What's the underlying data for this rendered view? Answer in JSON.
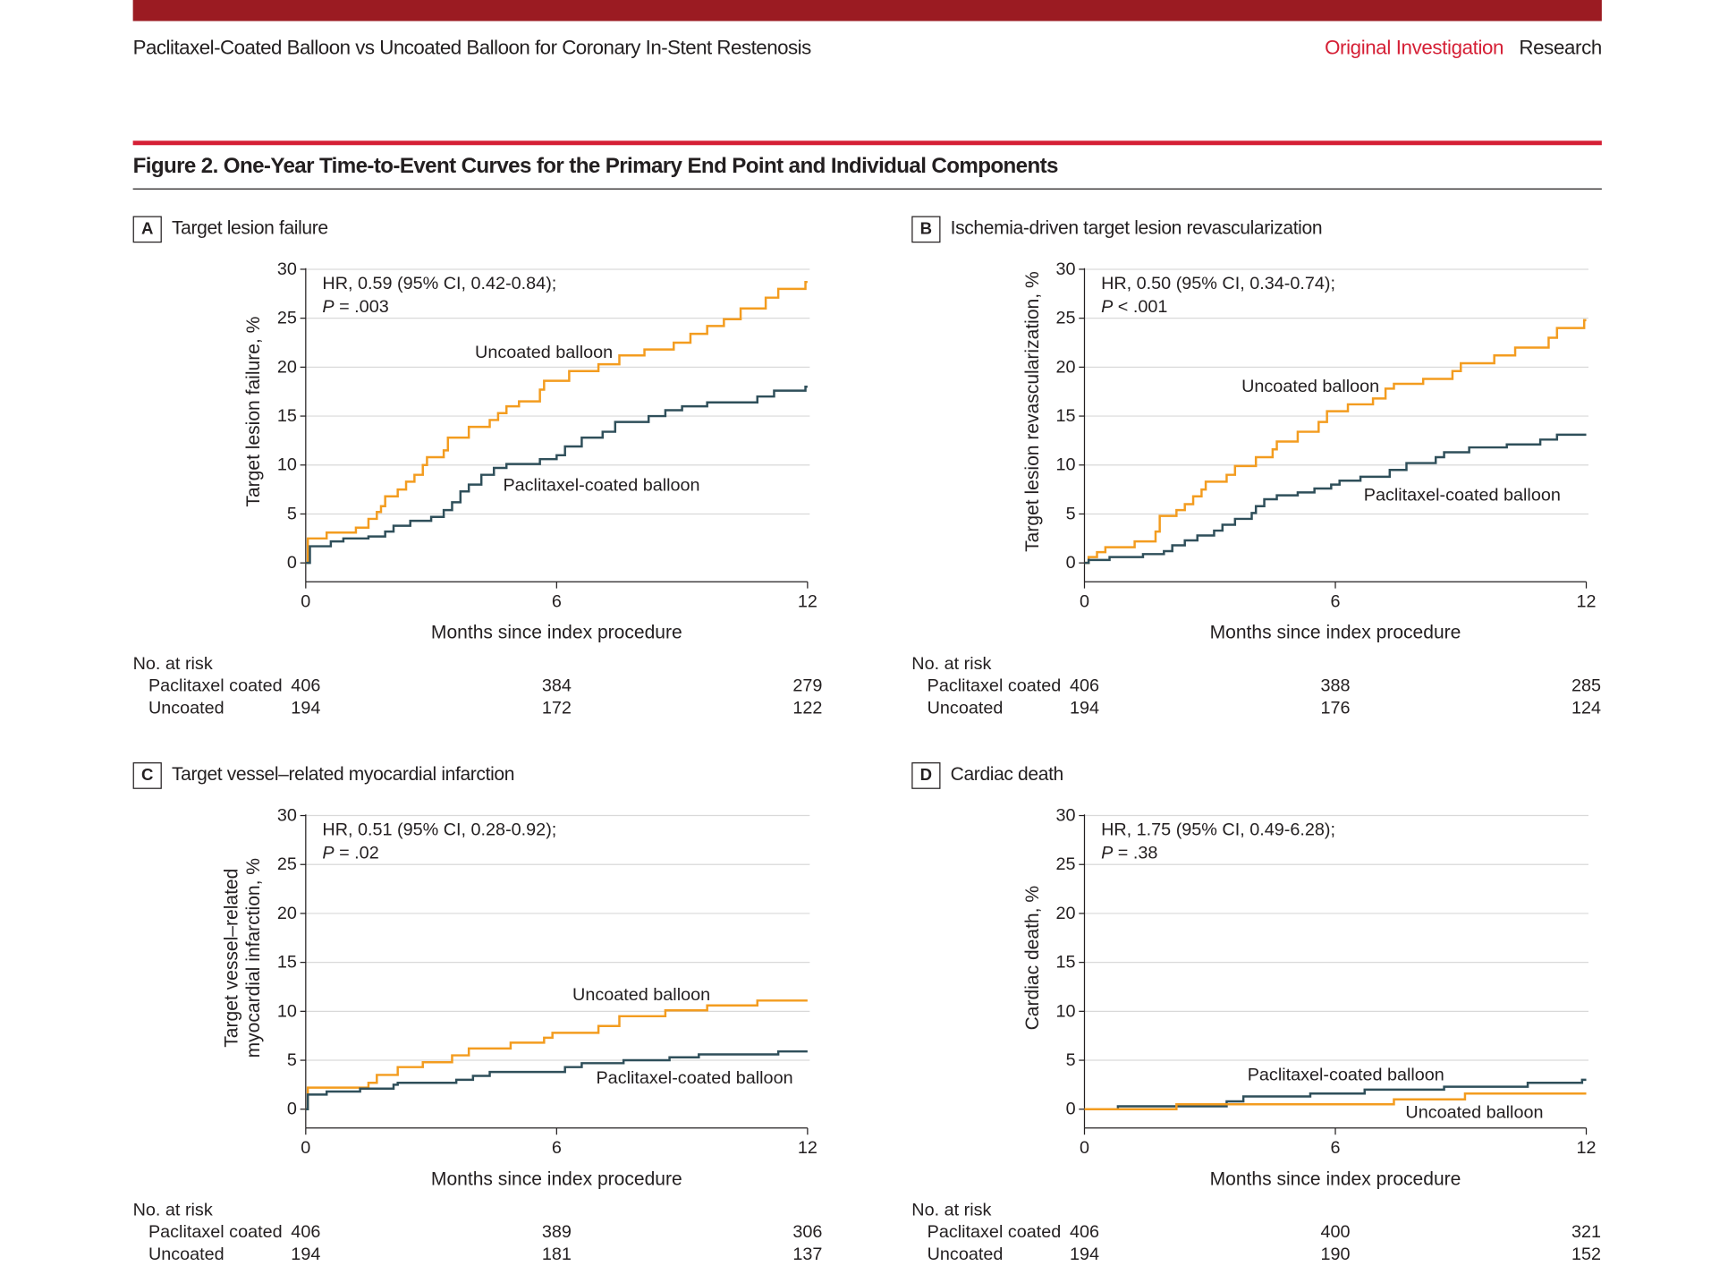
{
  "header": {
    "running_title": "Paclitaxel-Coated Balloon vs Uncoated Balloon for Coronary In-Stent Restenosis",
    "section": "Original Investigation",
    "category": "Research"
  },
  "figure_title": "Figure 2. One-Year Time-to-Event Curves for the Primary End Point and Individual Components",
  "colors": {
    "top_bar": "#9b1b22",
    "accent_red": "#d51f35",
    "uncoated": "#f39c1f",
    "paclitaxel": "#2f4f5a",
    "grid": "#d9d9d9"
  },
  "chart_data": [
    {
      "type": "line",
      "step": true,
      "letter": "A",
      "title": "Target lesion failure",
      "ylabel": [
        "Target lesion failure, %"
      ],
      "xlabel": "Months since index procedure",
      "xlim": [
        0,
        12
      ],
      "ylim": [
        0,
        30
      ],
      "xticks": [
        0,
        6,
        12
      ],
      "yticks": [
        0,
        5,
        10,
        15,
        20,
        25,
        30
      ],
      "grid": true,
      "hr_text": "HR, 0.59 (95% CI, 0.42-0.84);",
      "p_label": "P",
      "p_value": " = .003",
      "series": [
        {
          "name": "Uncoated balloon",
          "color": "#f39c1f",
          "points": [
            [
              0,
              0
            ],
            [
              0.05,
              2.5
            ],
            [
              0.5,
              3.1
            ],
            [
              1.2,
              3.6
            ],
            [
              1.5,
              4.5
            ],
            [
              1.7,
              5.2
            ],
            [
              1.8,
              5.8
            ],
            [
              1.9,
              6.8
            ],
            [
              2.2,
              7.5
            ],
            [
              2.4,
              8.3
            ],
            [
              2.6,
              9
            ],
            [
              2.8,
              10
            ],
            [
              2.9,
              10.8
            ],
            [
              3.3,
              11.5
            ],
            [
              3.4,
              12.8
            ],
            [
              3.9,
              13.9
            ],
            [
              4.4,
              14.6
            ],
            [
              4.6,
              15.3
            ],
            [
              4.8,
              16
            ],
            [
              5.1,
              16.5
            ],
            [
              5.6,
              17.7
            ],
            [
              5.7,
              18.6
            ],
            [
              6.3,
              19.6
            ],
            [
              7.0,
              20.3
            ],
            [
              7.5,
              21.2
            ],
            [
              8.1,
              21.8
            ],
            [
              8.8,
              22.5
            ],
            [
              9.2,
              23.4
            ],
            [
              9.6,
              24.2
            ],
            [
              10.0,
              24.9
            ],
            [
              10.4,
              26
            ],
            [
              11.0,
              27.1
            ],
            [
              11.3,
              28
            ],
            [
              11.95,
              28.7
            ]
          ]
        },
        {
          "name": "Paclitaxel-coated balloon",
          "color": "#2f4f5a",
          "points": [
            [
              0,
              0
            ],
            [
              0.1,
              1.7
            ],
            [
              0.6,
              2.2
            ],
            [
              0.9,
              2.5
            ],
            [
              1.5,
              2.7
            ],
            [
              1.9,
              3.2
            ],
            [
              2.1,
              3.8
            ],
            [
              2.5,
              4.3
            ],
            [
              3.0,
              4.7
            ],
            [
              3.3,
              5.4
            ],
            [
              3.5,
              6.2
            ],
            [
              3.7,
              7.3
            ],
            [
              3.9,
              8
            ],
            [
              4.2,
              9
            ],
            [
              4.5,
              9.7
            ],
            [
              4.8,
              10.1
            ],
            [
              5.6,
              10.6
            ],
            [
              6.0,
              11
            ],
            [
              6.2,
              11.9
            ],
            [
              6.6,
              12.8
            ],
            [
              7.1,
              13.4
            ],
            [
              7.4,
              14.4
            ],
            [
              8.2,
              15
            ],
            [
              8.6,
              15.6
            ],
            [
              9.0,
              16
            ],
            [
              9.6,
              16.4
            ],
            [
              10.8,
              17
            ],
            [
              11.2,
              17.6
            ],
            [
              11.95,
              18
            ]
          ]
        }
      ],
      "risk": {
        "header": "No. at risk",
        "rows": [
          {
            "label": "Paclitaxel coated",
            "values": [
              "406",
              "384",
              "279"
            ]
          },
          {
            "label": "Uncoated",
            "values": [
              "194",
              "172",
              "122"
            ]
          }
        ]
      }
    },
    {
      "type": "line",
      "step": true,
      "letter": "B",
      "title": "Ischemia-driven target lesion revascularization",
      "ylabel": [
        "Target lesion revascularization, %"
      ],
      "xlabel": "Months since index procedure",
      "xlim": [
        0,
        12
      ],
      "ylim": [
        0,
        30
      ],
      "xticks": [
        0,
        6,
        12
      ],
      "yticks": [
        0,
        5,
        10,
        15,
        20,
        25,
        30
      ],
      "grid": true,
      "hr_text": "HR, 0.50 (95% CI, 0.34-0.74);",
      "p_label": "P",
      "p_value": " < .001",
      "series": [
        {
          "name": "Uncoated balloon",
          "color": "#f39c1f",
          "points": [
            [
              0,
              0
            ],
            [
              0.1,
              0.6
            ],
            [
              0.3,
              1.1
            ],
            [
              0.5,
              1.6
            ],
            [
              1.2,
              2.2
            ],
            [
              1.7,
              3.2
            ],
            [
              1.8,
              4.8
            ],
            [
              2.2,
              5.4
            ],
            [
              2.4,
              6
            ],
            [
              2.6,
              6.8
            ],
            [
              2.8,
              7.5
            ],
            [
              2.9,
              8.3
            ],
            [
              3.4,
              9
            ],
            [
              3.6,
              9.9
            ],
            [
              4.1,
              10.8
            ],
            [
              4.5,
              11.6
            ],
            [
              4.6,
              12.4
            ],
            [
              5.1,
              13.4
            ],
            [
              5.6,
              14.4
            ],
            [
              5.8,
              15.5
            ],
            [
              6.3,
              16.2
            ],
            [
              6.9,
              16.8
            ],
            [
              7.2,
              17.8
            ],
            [
              7.4,
              18.3
            ],
            [
              8.1,
              18.8
            ],
            [
              8.8,
              19.6
            ],
            [
              9.0,
              20.4
            ],
            [
              9.8,
              21.2
            ],
            [
              10.3,
              22
            ],
            [
              11.1,
              23
            ],
            [
              11.3,
              24
            ],
            [
              11.95,
              24.8
            ]
          ]
        },
        {
          "name": "Paclitaxel-coated balloon",
          "color": "#2f4f5a",
          "points": [
            [
              0,
              0
            ],
            [
              0.1,
              0.3
            ],
            [
              0.6,
              0.6
            ],
            [
              1.4,
              0.9
            ],
            [
              1.9,
              1.2
            ],
            [
              2.1,
              1.8
            ],
            [
              2.4,
              2.3
            ],
            [
              2.7,
              2.8
            ],
            [
              3.1,
              3.3
            ],
            [
              3.3,
              3.9
            ],
            [
              3.6,
              4.5
            ],
            [
              4.0,
              5.1
            ],
            [
              4.1,
              5.8
            ],
            [
              4.3,
              6.5
            ],
            [
              4.6,
              6.9
            ],
            [
              5.1,
              7.2
            ],
            [
              5.5,
              7.6
            ],
            [
              5.9,
              8
            ],
            [
              6.1,
              8.4
            ],
            [
              6.6,
              8.8
            ],
            [
              7.3,
              9.5
            ],
            [
              7.7,
              10.2
            ],
            [
              8.4,
              10.8
            ],
            [
              8.6,
              11.3
            ],
            [
              9.2,
              11.8
            ],
            [
              10.1,
              12.1
            ],
            [
              10.9,
              12.6
            ],
            [
              11.3,
              13.1
            ],
            [
              12,
              13.1
            ]
          ]
        }
      ],
      "risk": {
        "header": "No. at risk",
        "rows": [
          {
            "label": "Paclitaxel coated",
            "values": [
              "406",
              "388",
              "285"
            ]
          },
          {
            "label": "Uncoated",
            "values": [
              "194",
              "176",
              "124"
            ]
          }
        ]
      }
    },
    {
      "type": "line",
      "step": true,
      "letter": "C",
      "title": "Target vessel–related myocardial infarction",
      "ylabel": [
        "Target vessel–related",
        "myocardial infarction, %"
      ],
      "xlabel": "Months since index procedure",
      "xlim": [
        0,
        12
      ],
      "ylim": [
        0,
        30
      ],
      "xticks": [
        0,
        6,
        12
      ],
      "yticks": [
        0,
        5,
        10,
        15,
        20,
        25,
        30
      ],
      "grid": true,
      "hr_text": "HR, 0.51 (95% CI, 0.28-0.92);",
      "p_label": "P",
      "p_value": " = .02",
      "series": [
        {
          "name": "Uncoated balloon",
          "color": "#f39c1f",
          "points": [
            [
              0,
              0
            ],
            [
              0.05,
              2.2
            ],
            [
              1.5,
              2.7
            ],
            [
              1.7,
              3.5
            ],
            [
              2.2,
              4.3
            ],
            [
              2.8,
              4.8
            ],
            [
              3.5,
              5.5
            ],
            [
              3.9,
              6.2
            ],
            [
              4.9,
              6.8
            ],
            [
              5.7,
              7.3
            ],
            [
              5.9,
              7.8
            ],
            [
              7.0,
              8.5
            ],
            [
              7.5,
              9.5
            ],
            [
              8.6,
              10.1
            ],
            [
              9.6,
              10.6
            ],
            [
              10.8,
              11.1
            ],
            [
              12,
              11.1
            ]
          ]
        },
        {
          "name": "Paclitaxel-coated balloon",
          "color": "#2f4f5a",
          "points": [
            [
              0,
              0
            ],
            [
              0.05,
              1.5
            ],
            [
              0.5,
              1.8
            ],
            [
              1.3,
              2.1
            ],
            [
              2.1,
              2.5
            ],
            [
              2.2,
              2.7
            ],
            [
              3.6,
              3
            ],
            [
              4.0,
              3.4
            ],
            [
              4.4,
              3.8
            ],
            [
              6.2,
              4.3
            ],
            [
              6.6,
              4.7
            ],
            [
              7.6,
              5
            ],
            [
              8.7,
              5.3
            ],
            [
              9.4,
              5.6
            ],
            [
              11.3,
              5.9
            ],
            [
              12,
              5.9
            ]
          ]
        }
      ],
      "risk": {
        "header": "No. at risk",
        "rows": [
          {
            "label": "Paclitaxel coated",
            "values": [
              "406",
              "389",
              "306"
            ]
          },
          {
            "label": "Uncoated",
            "values": [
              "194",
              "181",
              "137"
            ]
          }
        ]
      }
    },
    {
      "type": "line",
      "step": true,
      "letter": "D",
      "title": "Cardiac death",
      "ylabel": [
        "Cardiac death, %"
      ],
      "xlabel": "Months since index procedure",
      "xlim": [
        0,
        12
      ],
      "ylim": [
        0,
        30
      ],
      "xticks": [
        0,
        6,
        12
      ],
      "yticks": [
        0,
        5,
        10,
        15,
        20,
        25,
        30
      ],
      "grid": true,
      "hr_text": "HR, 1.75 (95% CI, 0.49-6.28);",
      "p_label": "P",
      "p_value": " = .38",
      "series": [
        {
          "name": "Paclitaxel-coated balloon",
          "color": "#2f4f5a",
          "points": [
            [
              0,
              0
            ],
            [
              0.8,
              0.3
            ],
            [
              3.4,
              0.8
            ],
            [
              3.8,
              1.3
            ],
            [
              5.4,
              1.6
            ],
            [
              6.7,
              2
            ],
            [
              8.6,
              2.3
            ],
            [
              10.6,
              2.7
            ],
            [
              11.9,
              3
            ]
          ]
        },
        {
          "name": "Uncoated balloon",
          "color": "#f39c1f",
          "points": [
            [
              0,
              0
            ],
            [
              2.2,
              0.5
            ],
            [
              7.4,
              1
            ],
            [
              9.1,
              1.6
            ],
            [
              12,
              1.6
            ]
          ]
        }
      ],
      "risk": {
        "header": "No. at risk",
        "rows": [
          {
            "label": "Paclitaxel coated",
            "values": [
              "406",
              "400",
              "321"
            ]
          },
          {
            "label": "Uncoated",
            "values": [
              "194",
              "190",
              "152"
            ]
          }
        ]
      }
    }
  ]
}
